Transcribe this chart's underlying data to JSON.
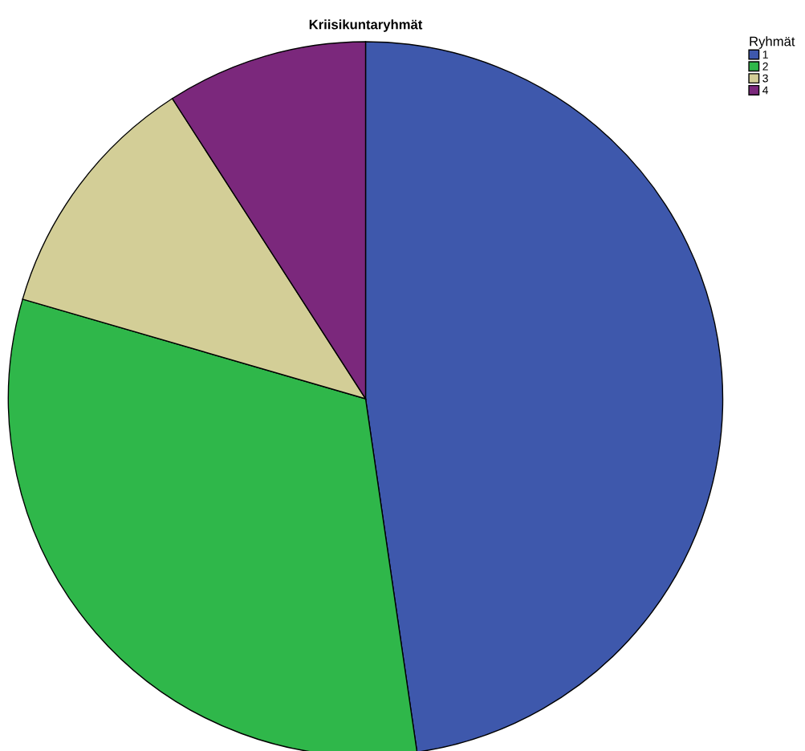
{
  "chart_data": {
    "type": "pie",
    "title": "Kriisikuntaryhmät",
    "legend_title": "Ryhmät",
    "categories": [
      "1",
      "2",
      "3",
      "4"
    ],
    "values": [
      47.7,
      31.8,
      11.4,
      9.1
    ],
    "colors": [
      "#3e58ac",
      "#2fb74a",
      "#d3ce97",
      "#7b287c"
    ],
    "legend": "top right"
  }
}
